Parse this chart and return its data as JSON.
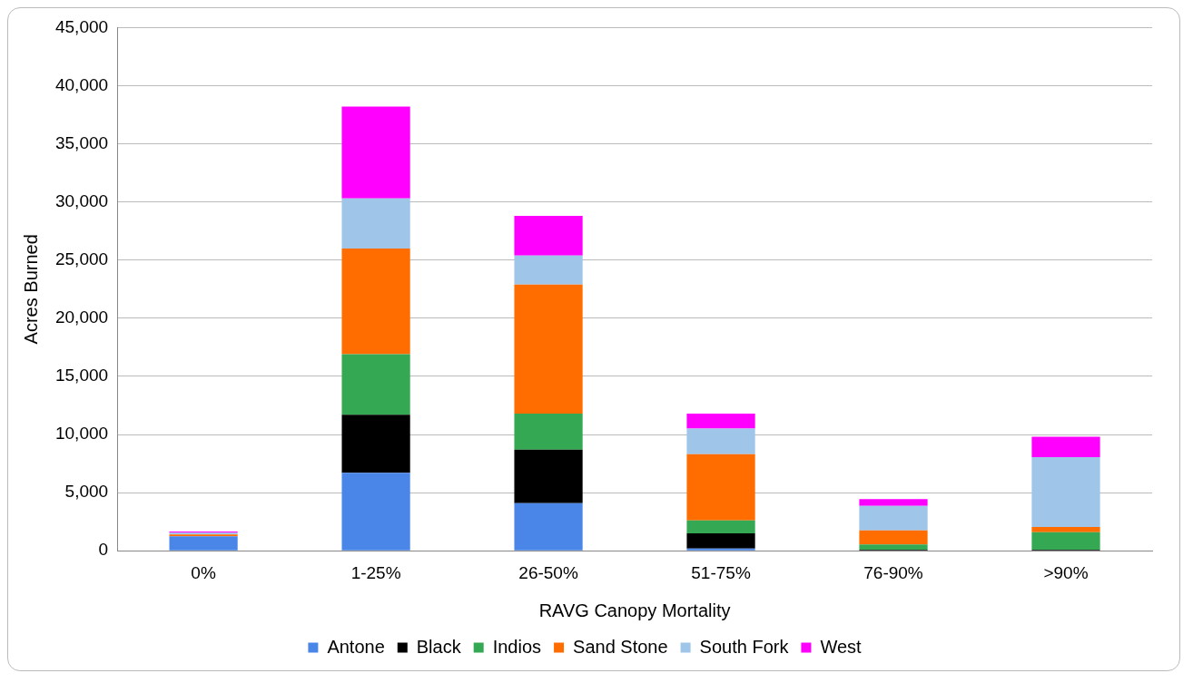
{
  "chart_data": {
    "type": "bar",
    "stacked": true,
    "xlabel": "RAVG Canopy Mortality",
    "ylabel": "Acres Burned",
    "categories": [
      "0%",
      "1-25%",
      "26-50%",
      "51-75%",
      "76-90%",
      ">90%"
    ],
    "series": [
      {
        "name": "Antone",
        "color": "#4a86e8",
        "values": [
          1250,
          6700,
          4100,
          200,
          null,
          0
        ]
      },
      {
        "name": "Black",
        "color": "#000000",
        "values": [
          0,
          5000,
          4600,
          1300,
          100,
          100
        ]
      },
      {
        "name": "Indios",
        "color": "#34a853",
        "values": [
          null,
          5200,
          3100,
          1100,
          450,
          1500
        ]
      },
      {
        "name": "Sand Stone",
        "color": "#ff6d01",
        "values": [
          150,
          9100,
          11100,
          5700,
          1200,
          450
        ]
      },
      {
        "name": "South Fork",
        "color": "#9fc5e8",
        "values": [
          150,
          4300,
          2500,
          2200,
          2100,
          6000
        ]
      },
      {
        "name": "West",
        "color": "#ff00ff",
        "values": [
          100,
          7900,
          3400,
          1300,
          600,
          1750
        ]
      }
    ],
    "ylim": [
      0,
      45000
    ],
    "yticks": [
      {
        "value": 0,
        "label": "0"
      },
      {
        "value": 5000,
        "label": "5,000"
      },
      {
        "value": 10000,
        "label": "10,000"
      },
      {
        "value": 15000,
        "label": "15,000"
      },
      {
        "value": 20000,
        "label": "20,000"
      },
      {
        "value": 25000,
        "label": "25,000"
      },
      {
        "value": 30000,
        "label": "30,000"
      },
      {
        "value": 35000,
        "label": "35,000"
      },
      {
        "value": 40000,
        "label": "40,000"
      },
      {
        "value": 45000,
        "label": "45,000"
      }
    ],
    "grid": "y",
    "legend": "bottom"
  }
}
